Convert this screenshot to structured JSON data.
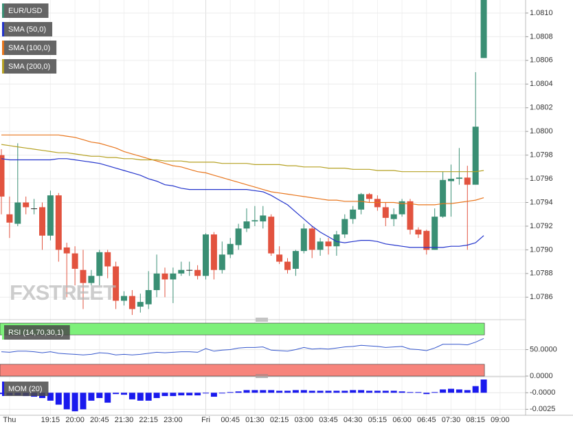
{
  "chart_data": [
    {
      "type": "candlestick",
      "name": "EUR/USD",
      "watermark": "FXSTREET",
      "categories": [
        null,
        "Thu",
        null,
        null,
        null,
        null,
        "19:15",
        null,
        null,
        "20:00",
        null,
        null,
        "20:45",
        null,
        null,
        "21:30",
        null,
        null,
        "22:15",
        null,
        null,
        "23:00",
        null,
        null,
        null,
        "Fri",
        null,
        null,
        "00:45",
        null,
        null,
        "01:30",
        null,
        null,
        "02:15",
        null,
        null,
        "03:00",
        null,
        null,
        "03:45",
        null,
        null,
        "04:30",
        null,
        null,
        "05:15",
        null,
        null,
        "06:00",
        null,
        null,
        "06:45",
        null,
        null,
        "07:30",
        null,
        null,
        "08:15",
        null,
        null,
        "09:00"
      ],
      "open": [
        1.0798,
        1.0793,
        1.07922,
        1.0794,
        1.07935,
        1.07936,
        1.07912,
        1.07946,
        1.07902,
        1.07897,
        1.07883,
        1.07872,
        1.07878,
        1.07898,
        1.07886,
        1.07857,
        1.07861,
        1.07852,
        1.07854,
        1.07866,
        1.0788,
        1.07875,
        1.0788,
        1.07883,
        1.07883,
        1.07878,
        1.07913,
        1.07883,
        1.07896,
        1.07904,
        1.07918,
        1.07924,
        1.07924,
        1.07928,
        1.07896,
        1.0789,
        1.07884,
        1.07899,
        1.07918,
        1.079,
        1.07907,
        1.07903,
        1.07913,
        1.07926,
        1.07934,
        1.07947,
        1.07943,
        1.07936,
        1.07926,
        1.0793,
        1.07941,
        1.07917,
        1.07916,
        1.079,
        1.07928,
        1.07958,
        1.0796,
        1.07961,
        1.07955,
        1.08062,
        null,
        null
      ],
      "high": [
        1.07985,
        1.07945,
        1.0799,
        1.07945,
        1.07943,
        1.0794,
        1.0795,
        1.07948,
        1.07906,
        1.07903,
        1.079,
        1.07883,
        1.079,
        1.079,
        1.0789,
        1.07865,
        1.07866,
        1.07863,
        1.07882,
        1.07896,
        1.07885,
        1.07885,
        1.0789,
        1.0789,
        1.07887,
        1.07914,
        1.07915,
        1.07907,
        1.0791,
        1.07922,
        1.07935,
        1.07937,
        1.07937,
        1.0793,
        1.07903,
        1.07893,
        1.079,
        1.07922,
        1.0792,
        1.0791,
        1.0791,
        1.07916,
        1.0793,
        1.07937,
        1.07948,
        1.07948,
        1.07946,
        1.0794,
        1.07935,
        1.07943,
        1.07943,
        1.07919,
        1.07917,
        1.07935,
        1.07966,
        1.07972,
        1.07986,
        1.07971,
        1.0805,
        1.0812,
        null,
        null
      ],
      "low": [
        1.0793,
        1.0791,
        1.0792,
        1.0793,
        1.0793,
        1.079,
        1.07908,
        1.0789,
        1.0786,
        1.0787,
        1.0785,
        1.0787,
        1.0787,
        1.07876,
        1.0785,
        1.07853,
        1.07845,
        1.07847,
        1.0785,
        1.0786,
        1.0786,
        1.07855,
        1.07878,
        1.07878,
        1.07875,
        1.07875,
        1.07875,
        1.0788,
        1.07893,
        1.079,
        1.07915,
        1.0792,
        1.07918,
        1.07895,
        1.07888,
        1.0788,
        1.07878,
        1.07897,
        1.07893,
        1.07895,
        1.07896,
        1.07895,
        1.0791,
        1.07922,
        1.0793,
        1.0794,
        1.07933,
        1.0792,
        1.0792,
        1.07928,
        1.07913,
        1.0791,
        1.07896,
        1.079,
        1.07927,
        1.07928,
        1.07955,
        1.079,
        1.07955,
        1.08062,
        null,
        null
      ],
      "close": [
        1.07945,
        1.07923,
        1.0794,
        1.07936,
        1.07935,
        1.07912,
        1.07946,
        1.079,
        1.07897,
        1.07884,
        1.07872,
        1.07878,
        1.07898,
        1.07886,
        1.07857,
        1.07861,
        1.0785,
        1.07856,
        1.07866,
        1.0788,
        1.07875,
        1.0788,
        1.07883,
        1.07883,
        1.07878,
        1.07913,
        1.07883,
        1.07896,
        1.07905,
        1.07918,
        1.07924,
        1.07925,
        1.07929,
        1.07897,
        1.0789,
        1.07883,
        1.07899,
        1.07918,
        1.079,
        1.07907,
        1.07903,
        1.07913,
        1.07926,
        1.07934,
        1.07947,
        1.07943,
        1.07936,
        1.07927,
        1.0793,
        1.07941,
        1.07917,
        1.07913,
        1.079,
        1.07928,
        1.07959,
        1.0796,
        1.07961,
        1.07955,
        1.08004,
        1.0812,
        null,
        null
      ],
      "up_color": "#3a8f74",
      "down_color": "#e2533f",
      "series": [
        {
          "name": "SMA (50,0)",
          "color": "#2233cc",
          "values": [
            1.07977,
            1.07976,
            1.07976,
            1.07976,
            1.07976,
            1.07976,
            1.07976,
            1.07977,
            1.07977,
            1.07976,
            1.07975,
            1.07974,
            1.07973,
            1.07971,
            1.07969,
            1.07967,
            1.07965,
            1.07963,
            1.0796,
            1.07958,
            1.07955,
            1.07954,
            1.07952,
            1.07951,
            1.07951,
            1.07951,
            1.07951,
            1.07951,
            1.07951,
            1.07951,
            1.07951,
            1.0795,
            1.07949,
            1.07946,
            1.07942,
            1.07938,
            1.07932,
            1.07926,
            1.0792,
            1.07915,
            1.07911,
            1.07907,
            1.07906,
            1.07907,
            1.07908,
            1.07908,
            1.07907,
            1.07905,
            1.07904,
            1.07903,
            1.07902,
            1.07902,
            1.07902,
            1.07902,
            1.07902,
            1.07903,
            1.07903,
            1.07904,
            1.07906,
            1.07912,
            null,
            null
          ]
        },
        {
          "name": "SMA (100,0)",
          "color": "#e8741a",
          "values": [
            1.07997,
            1.07997,
            1.07997,
            1.07997,
            1.07997,
            1.07997,
            1.07997,
            1.07997,
            1.07996,
            1.07995,
            1.07993,
            1.07991,
            1.0799,
            1.07988,
            1.07986,
            1.07983,
            1.07981,
            1.07979,
            1.07977,
            1.07975,
            1.07973,
            1.07971,
            1.0797,
            1.07968,
            1.07966,
            1.07965,
            1.07963,
            1.07961,
            1.07959,
            1.07957,
            1.07955,
            1.07953,
            1.07951,
            1.07949,
            1.07948,
            1.07947,
            1.07946,
            1.07945,
            1.07944,
            1.07943,
            1.07942,
            1.07942,
            1.07941,
            1.07941,
            1.07941,
            1.0794,
            1.0794,
            1.0794,
            1.0794,
            1.07939,
            1.07939,
            1.07938,
            1.07938,
            1.07938,
            1.07939,
            1.07939,
            1.0794,
            1.07941,
            1.07942,
            1.07944,
            null,
            null
          ]
        },
        {
          "name": "SMA (200,0)",
          "color": "#b5a122",
          "values": [
            1.07989,
            1.07988,
            1.07987,
            1.07986,
            1.07985,
            1.07984,
            1.07983,
            1.07982,
            1.07982,
            1.07981,
            1.0798,
            1.07979,
            1.07979,
            1.07978,
            1.07978,
            1.07977,
            1.07977,
            1.07976,
            1.07976,
            1.07976,
            1.07975,
            1.07975,
            1.07975,
            1.07974,
            1.07974,
            1.07974,
            1.07974,
            1.07973,
            1.07973,
            1.07973,
            1.07973,
            1.07972,
            1.07972,
            1.07972,
            1.07972,
            1.07971,
            1.07971,
            1.0797,
            1.0797,
            1.0797,
            1.07969,
            1.07969,
            1.07969,
            1.07968,
            1.07968,
            1.07968,
            1.07967,
            1.07967,
            1.07967,
            1.07966,
            1.07966,
            1.07966,
            1.07966,
            1.07966,
            1.07966,
            1.07966,
            1.07966,
            1.07966,
            1.07966,
            1.07967,
            null,
            null
          ]
        }
      ],
      "ylim": [
        1.07841,
        1.08111
      ],
      "yticks": [
        1.0786,
        1.0788,
        {
          "value": 1.079,
          "label": "1.0790"
        },
        1.0792,
        1.0794,
        1.0796,
        1.0798,
        {
          "value": 1.08,
          "label": "1.0800"
        },
        1.0802,
        1.0804,
        1.0806,
        1.0808,
        {
          "value": 1.081,
          "label": "1.0810"
        }
      ],
      "grid": true
    },
    {
      "type": "line",
      "title": "RSI (14,70,30,1)",
      "color": "#3355cc",
      "overbought": 70,
      "oversold": 30,
      "overbought_color": "#7df07a",
      "oversold_color": "#f7847c",
      "values": [
        46,
        45,
        47,
        47,
        46,
        44,
        46,
        43,
        42,
        41,
        40,
        41,
        44,
        43,
        40,
        41,
        40,
        41,
        43,
        45,
        44,
        45,
        46,
        46,
        45,
        52,
        47,
        49,
        50,
        53,
        54,
        54,
        55,
        49,
        48,
        47,
        50,
        54,
        51,
        52,
        51,
        53,
        55,
        56,
        58,
        57,
        56,
        54,
        55,
        56,
        51,
        50,
        48,
        53,
        60,
        60,
        60,
        59,
        64,
        71,
        null,
        null
      ],
      "ylim": [
        0,
        100
      ],
      "yticks": [
        {
          "value": 50,
          "label": "50.0000"
        },
        {
          "value": 0,
          "label": "0.0000"
        }
      ]
    },
    {
      "type": "bar",
      "title": "MOM (20)",
      "color": "#1a1aee",
      "values": [
        -0.0002,
        -0.0004,
        -0.0004,
        -0.0005,
        -0.0006,
        -0.0008,
        -0.0012,
        -0.0018,
        -0.0025,
        -0.0028,
        -0.0025,
        -0.0012,
        -0.0008,
        -0.0015,
        -0.0002,
        -0.0003,
        -0.001,
        -0.0012,
        -0.0012,
        -0.0008,
        -0.0005,
        -0.0005,
        -0.0004,
        -0.0004,
        -0.0004,
        0,
        -0.0006,
        0,
        0.0001,
        0.0002,
        0.0004,
        0.0004,
        0.0004,
        0.0004,
        0.0003,
        0.0003,
        0.0004,
        0.0004,
        0.0003,
        0.0003,
        0.0003,
        0.0003,
        0.0003,
        0.0004,
        0.0004,
        0.0003,
        0.0003,
        0.0003,
        0.0003,
        0.0002,
        0.0001,
        0.0001,
        -0.0002,
        0.0001,
        0.0005,
        0.0006,
        0.0005,
        0.0004,
        0.001,
        0.002,
        null,
        null
      ],
      "ylim": [
        -0.0034,
        0.002
      ],
      "yticks": [
        {
          "value": 0,
          "label": "-0.0000"
        },
        -0.0025
      ]
    }
  ]
}
